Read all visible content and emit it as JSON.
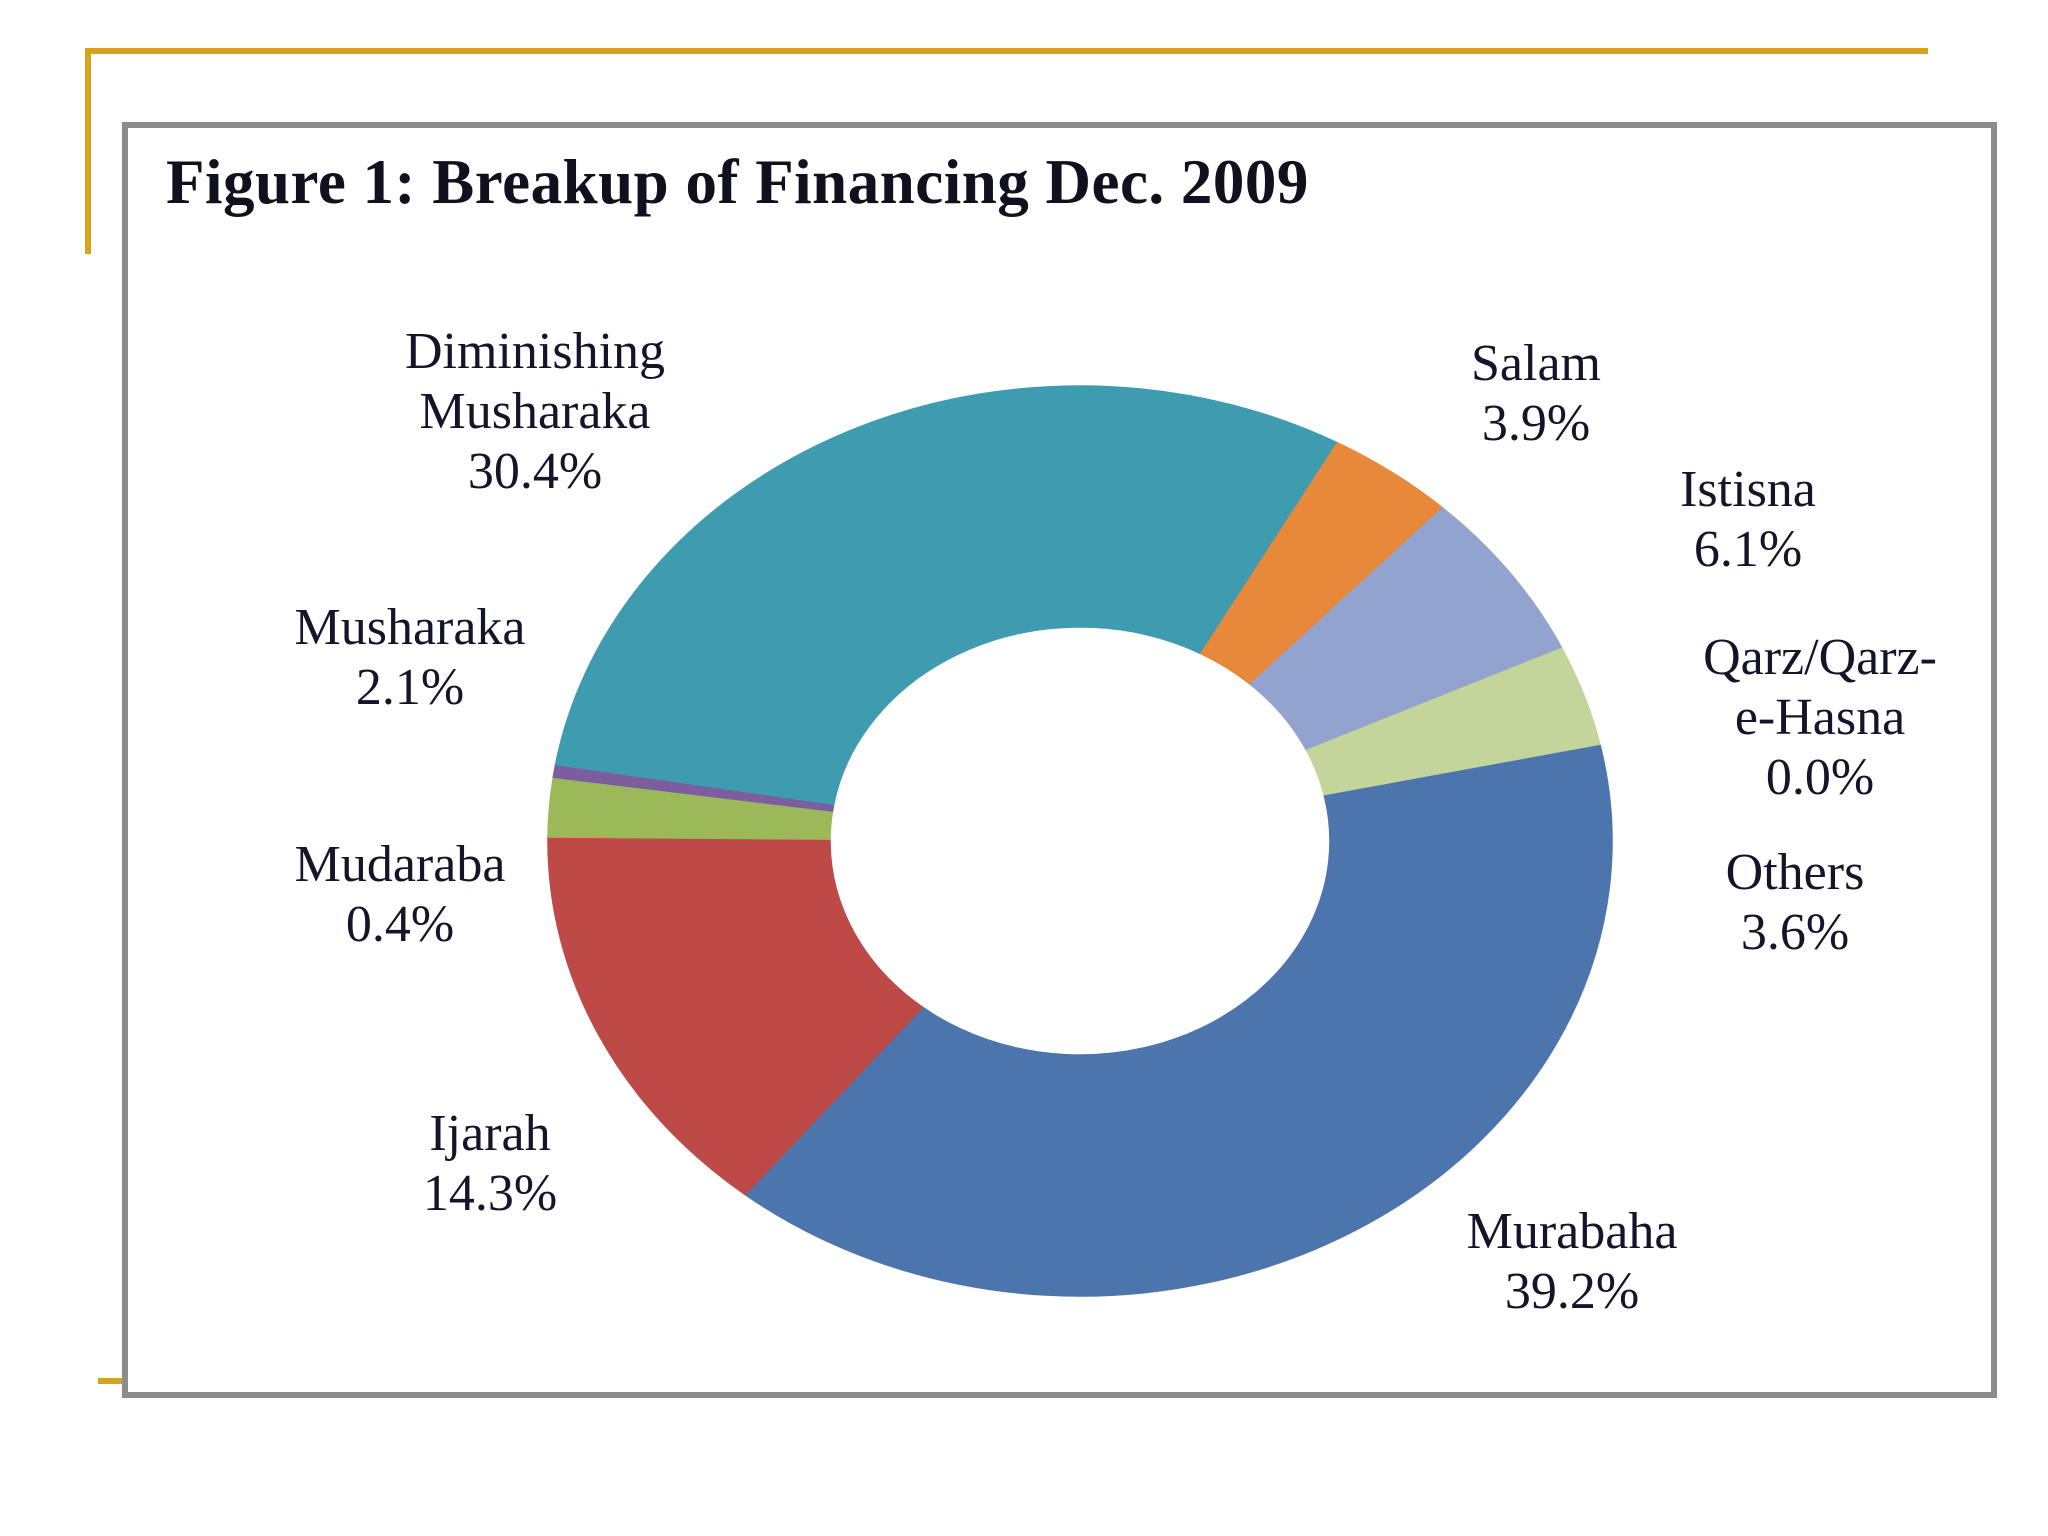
{
  "figure": {
    "title": "Figure 1: Breakup of Financing Dec. 2009"
  },
  "accents": {
    "gold": "#D6A41C",
    "frame_gray": "#8C8C8C",
    "label_text": "#14142A"
  },
  "chart_data": {
    "type": "pie",
    "subtype": "donut",
    "title": "Figure 1: Breakup of Financing Dec. 2009",
    "unit": "%",
    "legend_position": "labels-outside-slices",
    "start_angle_deg_from_12_clockwise": -80.5,
    "clockwise": true,
    "inner_radius_ratio": 0.47,
    "segments": [
      {
        "label": "Diminishing Musharaka",
        "value": 30.4,
        "display_lines": [
          "Diminishing",
          "Musharaka",
          "30.4%"
        ],
        "color": "#3F9CB0"
      },
      {
        "label": "Salam",
        "value": 3.9,
        "display_lines": [
          "Salam",
          "3.9%"
        ],
        "color": "#E8883A"
      },
      {
        "label": "Istisna",
        "value": 6.1,
        "display_lines": [
          "Istisna",
          "6.1%"
        ],
        "color": "#93A3D0"
      },
      {
        "label": "Qarz/Qarz-e-Hasna",
        "value": 0.0,
        "display_lines": [
          "Qarz/Qarz-",
          "e-Hasna",
          "0.0%"
        ],
        "color": "#D99694"
      },
      {
        "label": "Others",
        "value": 3.6,
        "display_lines": [
          "Others",
          "3.6%"
        ],
        "color": "#C3D59A"
      },
      {
        "label": "Murabaha",
        "value": 39.2,
        "display_lines": [
          "Murabaha",
          "39.2%"
        ],
        "color": "#4C74AD"
      },
      {
        "label": "Ijarah",
        "value": 14.3,
        "display_lines": [
          "Ijarah",
          "14.3%"
        ],
        "color": "#BE4A47"
      },
      {
        "label": "Musharaka",
        "value": 2.1,
        "display_lines": [
          "Musharaka",
          "2.1%"
        ],
        "color": "#9CB95A"
      },
      {
        "label": "Mudaraba",
        "value": 0.4,
        "display_lines": [
          "Mudaraba",
          "0.4%"
        ],
        "color": "#7C5DA0"
      }
    ]
  }
}
